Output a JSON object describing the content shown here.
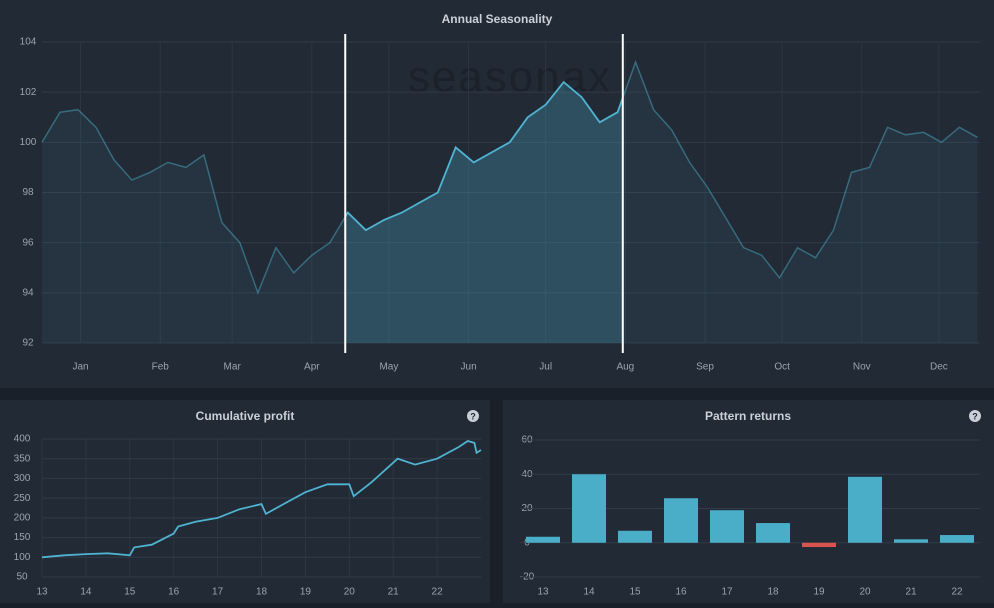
{
  "chart_data": [
    {
      "type": "line",
      "title": "Annual Seasonality",
      "watermark": "seasonax",
      "x": [
        0,
        7,
        14,
        21,
        28,
        35,
        42,
        49,
        56,
        63,
        70,
        77,
        84,
        91,
        98,
        105,
        112,
        119,
        126,
        133,
        140,
        147,
        154,
        161,
        168,
        175,
        182,
        189,
        196,
        203,
        210,
        217,
        224,
        231,
        238,
        245,
        252,
        259,
        266,
        273,
        280,
        287,
        294,
        301,
        308,
        315,
        322,
        329,
        336,
        343,
        350,
        357,
        364
      ],
      "series": [
        {
          "color": "#4fb3d1",
          "values": [
            100,
            101.2,
            101.3,
            100.6,
            99.3,
            98.5,
            98.8,
            99.2,
            99.0,
            99.5,
            96.8,
            96.0,
            94.0,
            95.8,
            94.8,
            95.5,
            96.0,
            97.2,
            96.5,
            96.9,
            97.2,
            97.6,
            98.0,
            99.8,
            99.2,
            99.6,
            100.0,
            101.0,
            101.5,
            102.4,
            101.8,
            100.8,
            101.2,
            103.2,
            101.3,
            100.5,
            99.2,
            98.2,
            97.0,
            95.8,
            95.5,
            94.6,
            95.8,
            95.4,
            96.5,
            98.8,
            99.0,
            100.6,
            100.3,
            100.4,
            100.0,
            100.6,
            100.2
          ]
        }
      ],
      "highlight": [
        118,
        226
      ],
      "xlim": [
        0,
        365
      ],
      "xticks": [
        {
          "value": 15,
          "label": "Jan"
        },
        {
          "value": 46,
          "label": "Feb"
        },
        {
          "value": 74,
          "label": "Mar"
        },
        {
          "value": 105,
          "label": "Apr"
        },
        {
          "value": 135,
          "label": "May"
        },
        {
          "value": 166,
          "label": "Jun"
        },
        {
          "value": 196,
          "label": "Jul"
        },
        {
          "value": 227,
          "label": "Aug"
        },
        {
          "value": 258,
          "label": "Sep"
        },
        {
          "value": 288,
          "label": "Oct"
        },
        {
          "value": 319,
          "label": "Nov"
        },
        {
          "value": 349,
          "label": "Dec"
        }
      ],
      "ylim": [
        92,
        104
      ],
      "yticks": [
        92,
        94,
        96,
        98,
        100,
        102,
        104
      ],
      "grid": true
    },
    {
      "type": "line",
      "title": "Cumulative profit",
      "help": "?",
      "x": [
        13,
        13.5,
        14,
        14.5,
        15,
        15.1,
        15.5,
        16,
        16.1,
        16.5,
        17,
        17.5,
        18,
        18.1,
        18.5,
        19,
        19.5,
        20,
        20.1,
        20.5,
        21,
        21.1,
        21.5,
        22,
        22.5,
        22.7,
        22.85,
        22.9,
        23
      ],
      "series": [
        {
          "color": "#4fb3d1",
          "values": [
            100,
            105,
            108,
            110,
            105,
            125,
            132,
            160,
            178,
            190,
            200,
            222,
            235,
            210,
            235,
            265,
            285,
            285,
            255,
            290,
            340,
            350,
            335,
            350,
            380,
            395,
            390,
            365,
            372
          ]
        }
      ],
      "xlim": [
        13,
        23
      ],
      "xticks": [
        13,
        14,
        15,
        16,
        17,
        18,
        19,
        20,
        21,
        22
      ],
      "ylim": [
        50,
        400
      ],
      "yticks": [
        50,
        100,
        150,
        200,
        250,
        300,
        350,
        400
      ],
      "grid": true
    },
    {
      "type": "bar",
      "title": "Pattern returns",
      "help": "?",
      "categories": [
        "13",
        "14",
        "15",
        "16",
        "17",
        "18",
        "19",
        "20",
        "21",
        "22"
      ],
      "values": [
        3.5,
        40,
        7,
        26,
        19,
        11.5,
        -2.5,
        38.5,
        2,
        4.5
      ],
      "color": "#4aaec9",
      "negative_color": "#d9534f",
      "ylim": [
        -20,
        60
      ],
      "yticks": [
        -20,
        0,
        20,
        40,
        60
      ],
      "grid": true
    }
  ]
}
